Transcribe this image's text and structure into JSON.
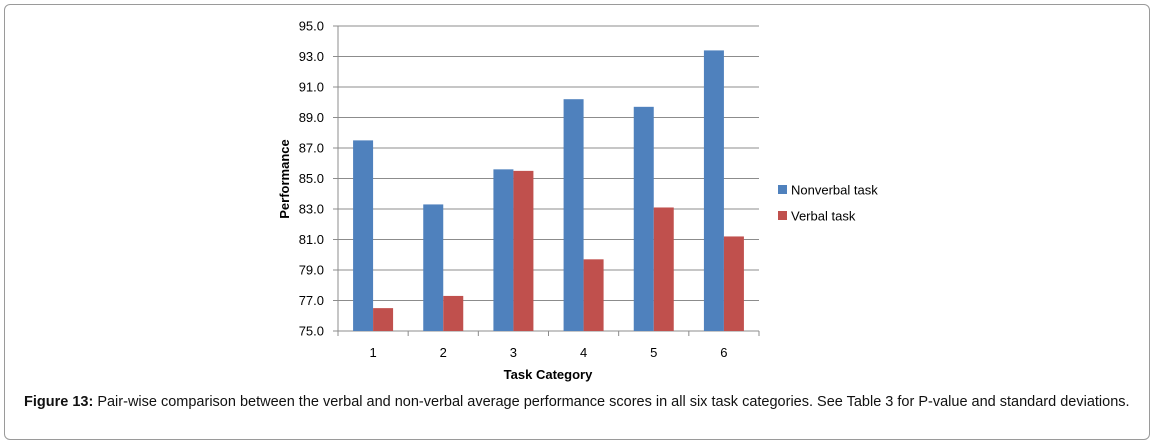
{
  "chart_data": {
    "type": "bar",
    "categories": [
      "1",
      "2",
      "3",
      "4",
      "5",
      "6"
    ],
    "series": [
      {
        "name": "Nonverbal task",
        "color": "#4f81bd",
        "values": [
          87.5,
          83.3,
          85.6,
          90.2,
          89.7,
          93.4
        ]
      },
      {
        "name": "Verbal task",
        "color": "#c0504d",
        "values": [
          76.5,
          77.3,
          85.5,
          79.7,
          83.1,
          81.2
        ]
      }
    ],
    "xlabel": "Task Category",
    "ylabel": "Performance",
    "ylim": [
      75.0,
      95.0
    ],
    "yticks": [
      "75.0",
      "77.0",
      "79.0",
      "81.0",
      "83.0",
      "85.0",
      "87.0",
      "89.0",
      "91.0",
      "93.0",
      "95.0"
    ],
    "grid": true,
    "legend_position": "right"
  },
  "caption": {
    "label": "Figure 13:",
    "text": " Pair-wise comparison between the verbal and non-verbal average performance scores in all six task categories. See Table 3 for P-value and standard deviations."
  }
}
